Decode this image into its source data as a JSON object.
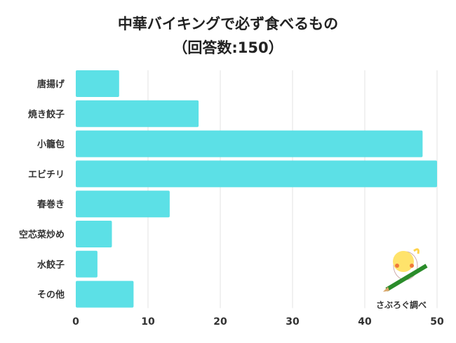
{
  "chart_data": {
    "type": "bar",
    "orientation": "horizontal",
    "title": "中華バイキングで必ず食べるもの",
    "subtitle": "（回答数:150）",
    "categories": [
      "唐揚げ",
      "焼き餃子",
      "小籠包",
      "エビチリ",
      "春巻き",
      "空芯菜炒め",
      "水餃子",
      "その他"
    ],
    "values": [
      6,
      17,
      48,
      50,
      13,
      5,
      3,
      8
    ],
    "xlim": [
      0,
      50
    ],
    "xticks": [
      "0",
      "10",
      "20",
      "30",
      "40",
      "50"
    ],
    "xlabel": "",
    "ylabel": "",
    "grid": true,
    "bar_color": "#5ce0e6",
    "grid_color": "#e3e3e3"
  },
  "credit": "さぶろぐ調べ"
}
